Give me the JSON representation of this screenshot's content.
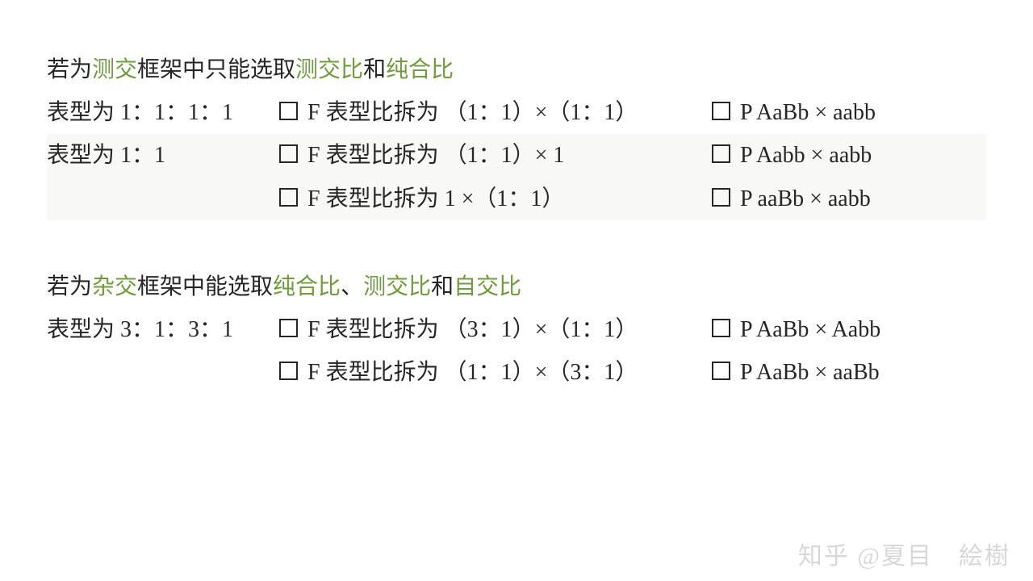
{
  "colors": {
    "highlight": "#6f9c3c",
    "text": "#262626",
    "bg": "#ffffff",
    "shade": "#f8f8f6"
  },
  "section1": {
    "title": {
      "p1": "若为",
      "hl1": "测交",
      "p2": " 框架中只能选取",
      "hl2": "测交比",
      "p3": "和",
      "hl3": "纯合比"
    },
    "rows": [
      {
        "left": "表型为 1：1：1：1",
        "mid": "F 表型比拆为 （1：1）×（1：1）",
        "right": "P  AaBb × aabb"
      },
      {
        "left": "表型为 1：1",
        "mid": "F 表型比拆为 （1：1）× 1",
        "right": "P  Aabb × aabb"
      },
      {
        "left": "",
        "mid": "F 表型比拆为  1 ×（1：1）",
        "right": "P  aaBb × aabb"
      }
    ]
  },
  "section2": {
    "title": {
      "p1": "若为",
      "hl1": "杂交",
      "p2": " 框架中能选取",
      "hl2": "纯合比",
      "p3": "、",
      "hl3": "测交比",
      "p4": "和",
      "hl4": "自交比"
    },
    "rows": [
      {
        "left": "表型为 3：1：3：1",
        "mid": "F 表型比拆为 （3：1）×（1：1）",
        "right": "P  AaBb × Aabb"
      },
      {
        "left": "",
        "mid": "F 表型比拆为 （1：1）×（3：1）",
        "right": "P  AaBb × aaBb"
      }
    ]
  },
  "watermark": "知乎 @夏目　絵樹"
}
